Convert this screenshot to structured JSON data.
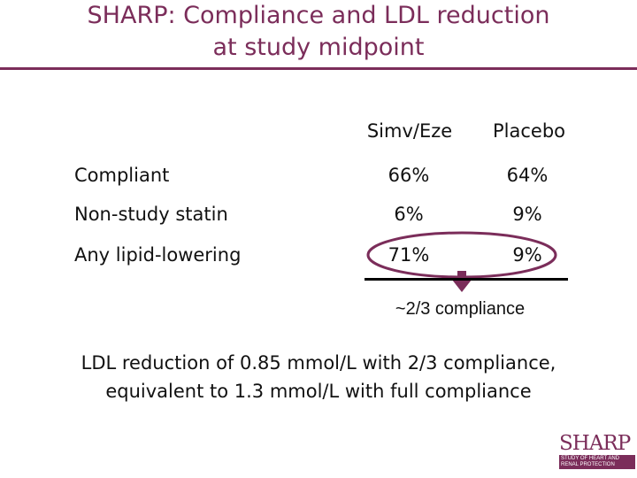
{
  "title": {
    "line1": "SHARP: Compliance and LDL reduction",
    "line2": "at study midpoint"
  },
  "table": {
    "columns": [
      "Simv/Eze",
      "Placebo"
    ],
    "rows": [
      {
        "label": "Compliant",
        "simv_eze": "66%",
        "placebo": "64%"
      },
      {
        "label": "Non-study statin",
        "simv_eze": "6%",
        "placebo": "9%"
      },
      {
        "label": "Any lipid-lowering",
        "simv_eze": "71%",
        "placebo": "9%"
      }
    ]
  },
  "annotation": "~2/3 compliance",
  "conclusion": {
    "line1": "LDL reduction of 0.85 mmol/L with 2/3 compliance,",
    "line2": "equivalent to 1.3 mmol/L with full compliance"
  },
  "logo": {
    "word": "SHARP",
    "band1": "STUDY OF HEART AND",
    "band2": "RENAL PROTECTION"
  },
  "colors": {
    "accent": "#7b2d5a",
    "text": "#111111"
  }
}
